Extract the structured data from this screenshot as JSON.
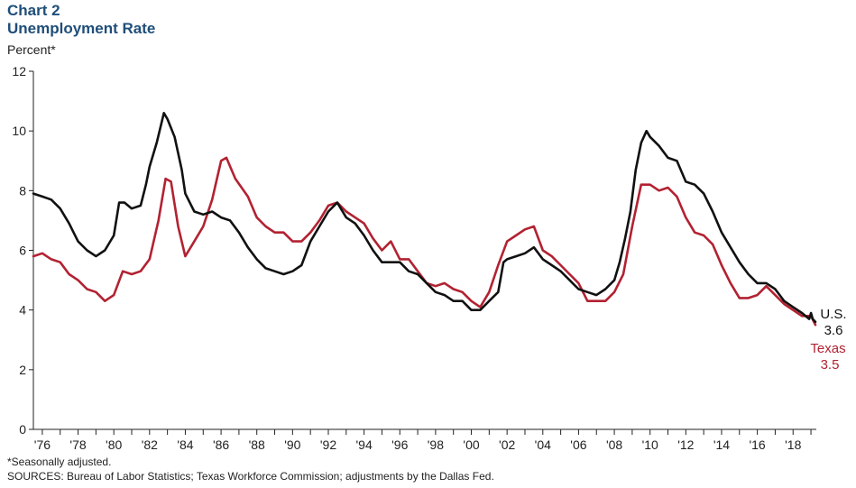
{
  "header": {
    "chart_label": "Chart 2",
    "title": "Unemployment Rate",
    "unit": "Percent*"
  },
  "footer": {
    "note": "*Seasonally adjusted.",
    "sources": "SOURCES: Bureau of Labor Statistics; Texas Workforce Commission; adjustments by the Dallas Fed."
  },
  "chart_data": {
    "type": "line",
    "title": "Unemployment Rate",
    "ylabel": "Percent*",
    "xlabel": "",
    "xlim": [
      1975.5,
      2019.3
    ],
    "ylim": [
      0,
      12
    ],
    "yticks": [
      0,
      2,
      4,
      6,
      8,
      10,
      12
    ],
    "xticks": [
      {
        "year": 1976,
        "label": "'76"
      },
      {
        "year": 1978,
        "label": "'78"
      },
      {
        "year": 1980,
        "label": "'80"
      },
      {
        "year": 1982,
        "label": "'82"
      },
      {
        "year": 1984,
        "label": "'84"
      },
      {
        "year": 1986,
        "label": "'86"
      },
      {
        "year": 1988,
        "label": "'88"
      },
      {
        "year": 1990,
        "label": "'90"
      },
      {
        "year": 1992,
        "label": "'92"
      },
      {
        "year": 1994,
        "label": "'94"
      },
      {
        "year": 1996,
        "label": "'96"
      },
      {
        "year": 1998,
        "label": "'98"
      },
      {
        "year": 2000,
        "label": "'00"
      },
      {
        "year": 2002,
        "label": "'02"
      },
      {
        "year": 2004,
        "label": "'04"
      },
      {
        "year": 2006,
        "label": "'06"
      },
      {
        "year": 2008,
        "label": "'08"
      },
      {
        "year": 2010,
        "label": "'10"
      },
      {
        "year": 2012,
        "label": "'12"
      },
      {
        "year": 2014,
        "label": "'14"
      },
      {
        "year": 2016,
        "label": "'16"
      },
      {
        "year": 2018,
        "label": "'18"
      }
    ],
    "grid": false,
    "series": [
      {
        "name": "U.S.",
        "color": "#111111",
        "end_value": "3.6",
        "points": [
          [
            1975.5,
            7.9
          ],
          [
            1976.0,
            7.8
          ],
          [
            1976.5,
            7.7
          ],
          [
            1977.0,
            7.4
          ],
          [
            1977.5,
            6.9
          ],
          [
            1978.0,
            6.3
          ],
          [
            1978.5,
            6.0
          ],
          [
            1979.0,
            5.8
          ],
          [
            1979.5,
            6.0
          ],
          [
            1980.0,
            6.5
          ],
          [
            1980.3,
            7.6
          ],
          [
            1980.6,
            7.6
          ],
          [
            1981.0,
            7.4
          ],
          [
            1981.5,
            7.5
          ],
          [
            1981.8,
            8.2
          ],
          [
            1982.0,
            8.8
          ],
          [
            1982.4,
            9.6
          ],
          [
            1982.8,
            10.6
          ],
          [
            1983.0,
            10.4
          ],
          [
            1983.4,
            9.8
          ],
          [
            1983.8,
            8.7
          ],
          [
            1984.0,
            7.9
          ],
          [
            1984.5,
            7.3
          ],
          [
            1985.0,
            7.2
          ],
          [
            1985.5,
            7.3
          ],
          [
            1986.0,
            7.1
          ],
          [
            1986.5,
            7.0
          ],
          [
            1987.0,
            6.6
          ],
          [
            1987.5,
            6.1
          ],
          [
            1988.0,
            5.7
          ],
          [
            1988.5,
            5.4
          ],
          [
            1989.0,
            5.3
          ],
          [
            1989.5,
            5.2
          ],
          [
            1990.0,
            5.3
          ],
          [
            1990.5,
            5.5
          ],
          [
            1991.0,
            6.3
          ],
          [
            1991.5,
            6.8
          ],
          [
            1992.0,
            7.3
          ],
          [
            1992.5,
            7.6
          ],
          [
            1993.0,
            7.1
          ],
          [
            1993.5,
            6.9
          ],
          [
            1994.0,
            6.5
          ],
          [
            1994.5,
            6.0
          ],
          [
            1995.0,
            5.6
          ],
          [
            1995.5,
            5.6
          ],
          [
            1996.0,
            5.6
          ],
          [
            1996.5,
            5.3
          ],
          [
            1997.0,
            5.2
          ],
          [
            1997.5,
            4.9
          ],
          [
            1998.0,
            4.6
          ],
          [
            1998.5,
            4.5
          ],
          [
            1999.0,
            4.3
          ],
          [
            1999.5,
            4.3
          ],
          [
            2000.0,
            4.0
          ],
          [
            2000.5,
            4.0
          ],
          [
            2001.0,
            4.3
          ],
          [
            2001.5,
            4.6
          ],
          [
            2001.8,
            5.6
          ],
          [
            2002.0,
            5.7
          ],
          [
            2002.5,
            5.8
          ],
          [
            2003.0,
            5.9
          ],
          [
            2003.5,
            6.1
          ],
          [
            2004.0,
            5.7
          ],
          [
            2004.5,
            5.5
          ],
          [
            2005.0,
            5.3
          ],
          [
            2005.5,
            5.0
          ],
          [
            2006.0,
            4.7
          ],
          [
            2006.5,
            4.6
          ],
          [
            2007.0,
            4.5
          ],
          [
            2007.5,
            4.7
          ],
          [
            2008.0,
            5.0
          ],
          [
            2008.3,
            5.6
          ],
          [
            2008.6,
            6.4
          ],
          [
            2008.9,
            7.3
          ],
          [
            2009.2,
            8.7
          ],
          [
            2009.5,
            9.6
          ],
          [
            2009.8,
            10.0
          ],
          [
            2010.0,
            9.8
          ],
          [
            2010.5,
            9.5
          ],
          [
            2011.0,
            9.1
          ],
          [
            2011.5,
            9.0
          ],
          [
            2012.0,
            8.3
          ],
          [
            2012.5,
            8.2
          ],
          [
            2013.0,
            7.9
          ],
          [
            2013.5,
            7.3
          ],
          [
            2014.0,
            6.6
          ],
          [
            2014.5,
            6.1
          ],
          [
            2015.0,
            5.6
          ],
          [
            2015.5,
            5.2
          ],
          [
            2016.0,
            4.9
          ],
          [
            2016.5,
            4.9
          ],
          [
            2017.0,
            4.7
          ],
          [
            2017.5,
            4.3
          ],
          [
            2018.0,
            4.1
          ],
          [
            2018.5,
            3.9
          ],
          [
            2018.9,
            3.7
          ],
          [
            2019.0,
            3.9
          ],
          [
            2019.1,
            3.7
          ],
          [
            2019.25,
            3.6
          ]
        ]
      },
      {
        "name": "Texas",
        "color": "#b22232",
        "end_value": "3.5",
        "points": [
          [
            1975.5,
            5.8
          ],
          [
            1976.0,
            5.9
          ],
          [
            1976.5,
            5.7
          ],
          [
            1977.0,
            5.6
          ],
          [
            1977.5,
            5.2
          ],
          [
            1978.0,
            5.0
          ],
          [
            1978.5,
            4.7
          ],
          [
            1979.0,
            4.6
          ],
          [
            1979.5,
            4.3
          ],
          [
            1980.0,
            4.5
          ],
          [
            1980.5,
            5.3
          ],
          [
            1981.0,
            5.2
          ],
          [
            1981.5,
            5.3
          ],
          [
            1982.0,
            5.7
          ],
          [
            1982.5,
            7.0
          ],
          [
            1982.9,
            8.4
          ],
          [
            1983.2,
            8.3
          ],
          [
            1983.6,
            6.8
          ],
          [
            1984.0,
            5.8
          ],
          [
            1984.5,
            6.3
          ],
          [
            1985.0,
            6.8
          ],
          [
            1985.5,
            7.7
          ],
          [
            1986.0,
            9.0
          ],
          [
            1986.3,
            9.1
          ],
          [
            1986.8,
            8.4
          ],
          [
            1987.5,
            7.8
          ],
          [
            1988.0,
            7.1
          ],
          [
            1988.5,
            6.8
          ],
          [
            1989.0,
            6.6
          ],
          [
            1989.5,
            6.6
          ],
          [
            1990.0,
            6.3
          ],
          [
            1990.5,
            6.3
          ],
          [
            1991.0,
            6.6
          ],
          [
            1991.5,
            7.0
          ],
          [
            1992.0,
            7.5
          ],
          [
            1992.5,
            7.6
          ],
          [
            1993.0,
            7.3
          ],
          [
            1993.5,
            7.1
          ],
          [
            1994.0,
            6.9
          ],
          [
            1994.5,
            6.4
          ],
          [
            1995.0,
            6.0
          ],
          [
            1995.5,
            6.3
          ],
          [
            1996.0,
            5.7
          ],
          [
            1996.5,
            5.7
          ],
          [
            1997.0,
            5.3
          ],
          [
            1997.5,
            4.9
          ],
          [
            1998.0,
            4.8
          ],
          [
            1998.5,
            4.9
          ],
          [
            1999.0,
            4.7
          ],
          [
            1999.5,
            4.6
          ],
          [
            2000.0,
            4.3
          ],
          [
            2000.5,
            4.1
          ],
          [
            2001.0,
            4.6
          ],
          [
            2001.5,
            5.5
          ],
          [
            2002.0,
            6.3
          ],
          [
            2002.5,
            6.5
          ],
          [
            2003.0,
            6.7
          ],
          [
            2003.5,
            6.8
          ],
          [
            2004.0,
            6.0
          ],
          [
            2004.5,
            5.8
          ],
          [
            2005.0,
            5.5
          ],
          [
            2005.5,
            5.2
          ],
          [
            2006.0,
            4.9
          ],
          [
            2006.5,
            4.3
          ],
          [
            2007.0,
            4.3
          ],
          [
            2007.5,
            4.3
          ],
          [
            2008.0,
            4.6
          ],
          [
            2008.5,
            5.2
          ],
          [
            2009.0,
            6.8
          ],
          [
            2009.5,
            8.2
          ],
          [
            2010.0,
            8.2
          ],
          [
            2010.5,
            8.0
          ],
          [
            2011.0,
            8.1
          ],
          [
            2011.5,
            7.8
          ],
          [
            2012.0,
            7.1
          ],
          [
            2012.5,
            6.6
          ],
          [
            2013.0,
            6.5
          ],
          [
            2013.5,
            6.2
          ],
          [
            2014.0,
            5.5
          ],
          [
            2014.5,
            4.9
          ],
          [
            2015.0,
            4.4
          ],
          [
            2015.5,
            4.4
          ],
          [
            2016.0,
            4.5
          ],
          [
            2016.5,
            4.8
          ],
          [
            2017.0,
            4.5
          ],
          [
            2017.5,
            4.2
          ],
          [
            2018.0,
            4.0
          ],
          [
            2018.5,
            3.8
          ],
          [
            2019.0,
            3.8
          ],
          [
            2019.25,
            3.5
          ]
        ]
      }
    ]
  }
}
